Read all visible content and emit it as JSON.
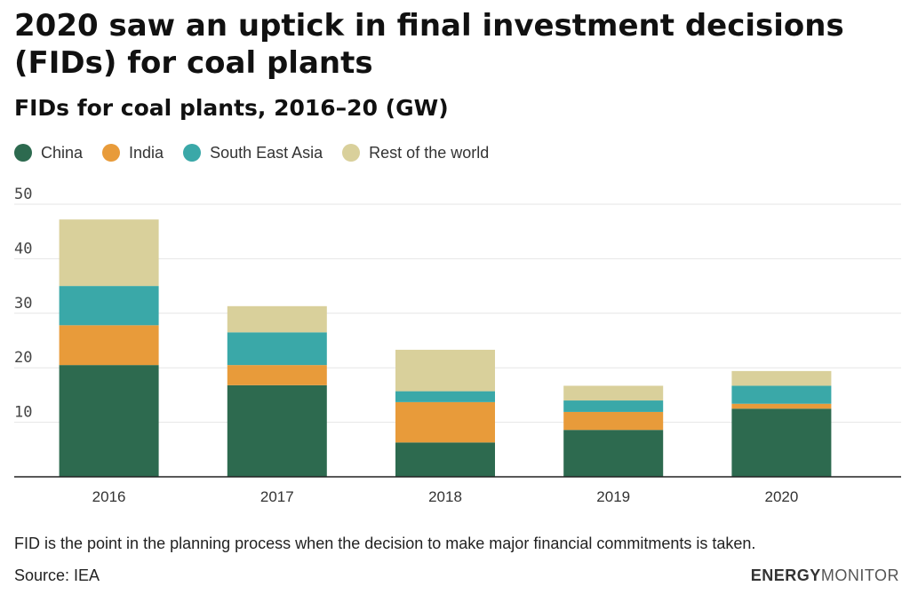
{
  "header": {
    "title": "2020 saw an uptick in final investment decisions (FIDs) for coal plants",
    "subtitle": "FIDs for coal plants, 2016–20 (GW)"
  },
  "legend": [
    {
      "label": "China",
      "color": "#2d6a4f"
    },
    {
      "label": "India",
      "color": "#e89b3a"
    },
    {
      "label": "South East Asia",
      "color": "#3aa8a8"
    },
    {
      "label": "Rest of the world",
      "color": "#d9d09b"
    }
  ],
  "footer": {
    "note": "FID is the point in the planning process when the decision to make major financial commitments is taken.",
    "source": "Source: IEA",
    "brand_bold": "ENERGY",
    "brand_light": "MONITOR"
  },
  "chart_data": {
    "type": "bar",
    "stacked": true,
    "categories": [
      "2016",
      "2017",
      "2018",
      "2019",
      "2020"
    ],
    "series": [
      {
        "name": "China",
        "color": "#2d6a4f",
        "values": [
          20.5,
          16.8,
          6.3,
          8.6,
          12.5
        ]
      },
      {
        "name": "India",
        "color": "#e89b3a",
        "values": [
          7.3,
          3.7,
          7.4,
          3.3,
          0.9
        ]
      },
      {
        "name": "South East Asia",
        "color": "#3aa8a8",
        "values": [
          7.2,
          6.0,
          2.0,
          2.1,
          3.3
        ]
      },
      {
        "name": "Rest of the world",
        "color": "#d9d09b",
        "values": [
          12.2,
          4.8,
          7.6,
          2.7,
          2.7
        ]
      }
    ],
    "ylim": [
      0,
      50
    ],
    "yticks": [
      10,
      20,
      30,
      40,
      50
    ],
    "grid": true,
    "legend_position": "top-left"
  }
}
